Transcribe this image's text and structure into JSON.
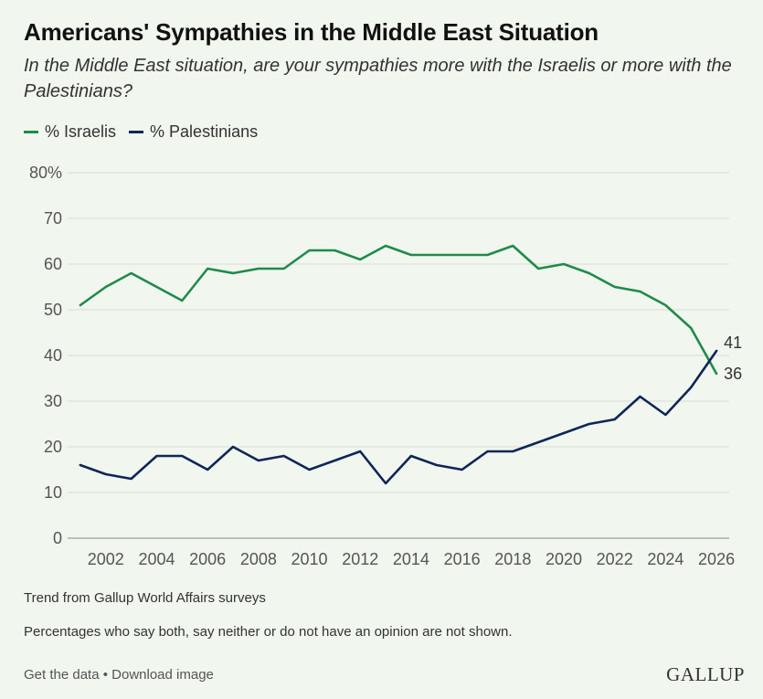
{
  "header": {
    "title": "Americans' Sympathies in the Middle East Situation",
    "subtitle": "In the Middle East situation, are your sympathies more with the Israelis or more with the Palestinians?"
  },
  "notes": {
    "trend": "Trend from Gallup World Affairs surveys",
    "exclusion": "Percentages who say both, say neither or do not have an opinion are not shown."
  },
  "footer": {
    "get_data": "Get the data",
    "separator": " • ",
    "download": "Download image",
    "logo": "GALLUP"
  },
  "chart_data": {
    "type": "line",
    "title": "Americans' Sympathies in the Middle East Situation",
    "xlabel": "",
    "ylabel": "",
    "x": [
      2001,
      2002,
      2003,
      2004,
      2005,
      2006,
      2007,
      2008,
      2009,
      2010,
      2011,
      2012,
      2013,
      2014,
      2015,
      2016,
      2017,
      2018,
      2019,
      2020,
      2021,
      2022,
      2023,
      2024,
      2025,
      2026
    ],
    "xlim": [
      2000.5,
      2026.5
    ],
    "x_ticks": [
      2002,
      2004,
      2006,
      2008,
      2010,
      2012,
      2014,
      2016,
      2018,
      2020,
      2022,
      2024,
      2026
    ],
    "ylim": [
      0,
      80
    ],
    "y_ticks": [
      0,
      10,
      20,
      30,
      40,
      50,
      60,
      70,
      80
    ],
    "y_tick_labels": [
      "0",
      "10",
      "20",
      "30",
      "40",
      "50",
      "60",
      "70",
      "80%"
    ],
    "grid": true,
    "legend_position": "top-left",
    "series": [
      {
        "name": "% Israelis",
        "color": "#1f8a4c",
        "values": [
          51,
          55,
          58,
          55,
          52,
          59,
          58,
          59,
          59,
          63,
          63,
          61,
          64,
          62,
          62,
          62,
          62,
          64,
          59,
          60,
          58,
          55,
          54,
          51,
          46,
          36
        ],
        "end_label": "36"
      },
      {
        "name": "% Palestinians",
        "color": "#0f2557",
        "values": [
          16,
          14,
          13,
          18,
          18,
          15,
          20,
          17,
          18,
          15,
          17,
          19,
          12,
          18,
          16,
          15,
          19,
          19,
          21,
          23,
          25,
          26,
          31,
          27,
          33,
          41
        ],
        "end_label": "41"
      }
    ]
  }
}
